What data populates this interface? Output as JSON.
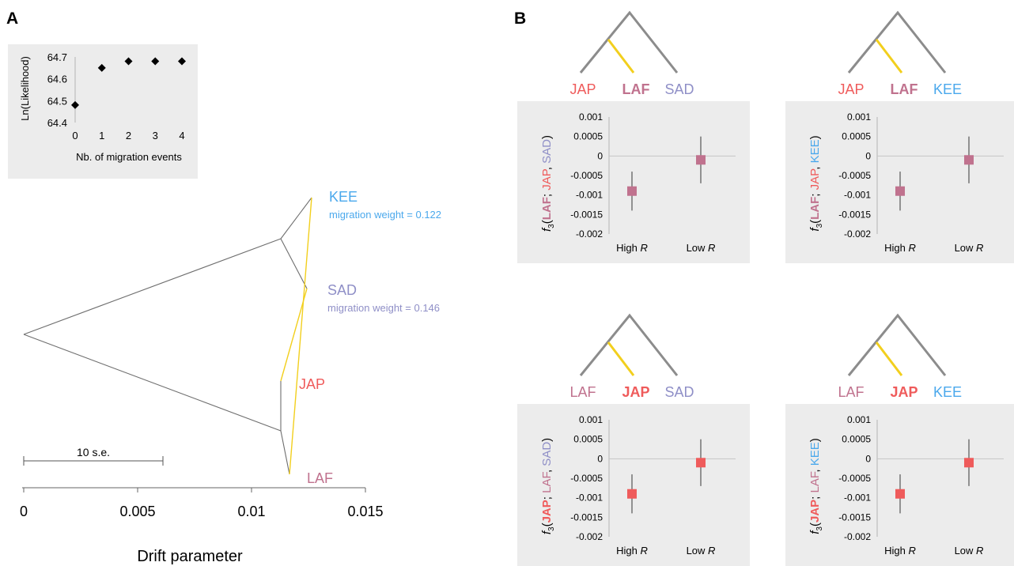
{
  "panel_a_letter": "A",
  "panel_b_letter": "B",
  "colors": {
    "JAP": "#ef5b5b",
    "LAF": "#c0728e",
    "SAD": "#8f8fc7",
    "KEE": "#4aa8ec",
    "migration": "#f2cf1d",
    "tree_gray": "#8c8c8c",
    "inset_bg": "#ececec"
  },
  "chart_data": [
    {
      "type": "scatter",
      "panel": "A-inset",
      "x": [
        0,
        1,
        2,
        3,
        4
      ],
      "y": [
        64.48,
        64.65,
        64.68,
        64.68,
        64.68
      ],
      "xlabel": "Nb. of migration events",
      "ylabel": "Ln(Likelihood)",
      "xlim": [
        0,
        4
      ],
      "ylim": [
        64.4,
        64.7
      ],
      "yticks": [
        "64.4",
        "64.5",
        "64.6",
        "64.7"
      ],
      "xticks": [
        "0",
        "1",
        "2",
        "3",
        "4"
      ]
    },
    {
      "type": "tree",
      "panel": "A",
      "xlabel": "Drift parameter",
      "xticks": [
        "0",
        "0.005",
        "0.01",
        "0.015"
      ],
      "xlim": [
        0,
        0.015
      ],
      "scale_bar": "10 s.e.",
      "leaves": [
        {
          "name": "KEE",
          "annotation": "migration weight = 0.122"
        },
        {
          "name": "SAD",
          "annotation": "migration weight = 0.146"
        },
        {
          "name": "JAP",
          "annotation": ""
        },
        {
          "name": "LAF",
          "annotation": ""
        }
      ]
    },
    {
      "type": "scatter",
      "panel": "B1",
      "tree_labels": [
        "JAP",
        "LAF",
        "SAD"
      ],
      "target": "LAF",
      "ylabel": {
        "prefix": "f",
        "sub": "3",
        "parts": [
          "LAF",
          "JAP",
          "SAD"
        ]
      },
      "categories": [
        "High R",
        "Low R"
      ],
      "values": [
        -0.0009,
        -0.0001
      ],
      "err_low": [
        -0.0014,
        -0.0007
      ],
      "err_high": [
        -0.0004,
        0.0005
      ],
      "ylim": [
        -0.002,
        0.001
      ],
      "yticks": [
        "0.001",
        "0.0005",
        "0",
        "-0.0005",
        "-0.001",
        "-0.0015",
        "-0.002"
      ]
    },
    {
      "type": "scatter",
      "panel": "B2",
      "tree_labels": [
        "JAP",
        "LAF",
        "KEE"
      ],
      "target": "LAF",
      "ylabel": {
        "prefix": "f",
        "sub": "3",
        "parts": [
          "LAF",
          "JAP",
          "KEE"
        ]
      },
      "categories": [
        "High R",
        "Low R"
      ],
      "values": [
        -0.0009,
        -0.0001
      ],
      "err_low": [
        -0.0014,
        -0.0007
      ],
      "err_high": [
        -0.0004,
        0.0005
      ],
      "ylim": [
        -0.002,
        0.001
      ],
      "yticks": [
        "0.001",
        "0.0005",
        "0",
        "-0.0005",
        "-0.001",
        "-0.0015",
        "-0.002"
      ]
    },
    {
      "type": "scatter",
      "panel": "B3",
      "tree_labels": [
        "LAF",
        "JAP",
        "SAD"
      ],
      "target": "JAP",
      "ylabel": {
        "prefix": "f",
        "sub": "3",
        "parts": [
          "JAP",
          "LAF",
          "SAD"
        ]
      },
      "categories": [
        "High R",
        "Low R"
      ],
      "values": [
        -0.0009,
        -0.0001
      ],
      "err_low": [
        -0.0014,
        -0.0007
      ],
      "err_high": [
        -0.0004,
        0.0005
      ],
      "ylim": [
        -0.002,
        0.001
      ],
      "yticks": [
        "0.001",
        "0.0005",
        "0",
        "-0.0005",
        "-0.001",
        "-0.0015",
        "-0.002"
      ]
    },
    {
      "type": "scatter",
      "panel": "B4",
      "tree_labels": [
        "LAF",
        "JAP",
        "KEE"
      ],
      "target": "JAP",
      "ylabel": {
        "prefix": "f",
        "sub": "3",
        "parts": [
          "JAP",
          "LAF",
          "KEE"
        ]
      },
      "categories": [
        "High R",
        "Low R"
      ],
      "values": [
        -0.0009,
        -0.0001
      ],
      "err_low": [
        -0.0014,
        -0.0007
      ],
      "err_high": [
        -0.0004,
        0.0005
      ],
      "ylim": [
        -0.002,
        0.001
      ],
      "yticks": [
        "0.001",
        "0.0005",
        "0",
        "-0.0005",
        "-0.001",
        "-0.0015",
        "-0.002"
      ]
    }
  ]
}
